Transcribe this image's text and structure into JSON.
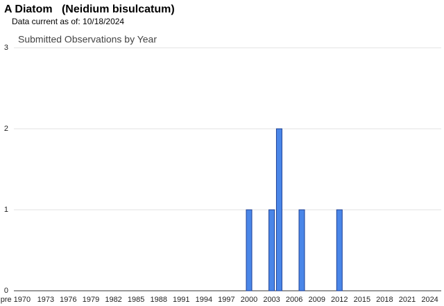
{
  "header": {
    "title": "A Diatom   (Neidium bisulcatum)",
    "subtitle": "Data current as of: 10/18/2024"
  },
  "chart_data": {
    "type": "bar",
    "title": "Submitted Observations by Year",
    "categories": [
      "pre 1970",
      null,
      null,
      null,
      "1973",
      null,
      null,
      "1976",
      null,
      null,
      "1979",
      null,
      null,
      "1982",
      null,
      null,
      "1985",
      null,
      null,
      "1988",
      null,
      null,
      "1991",
      null,
      null,
      "1994",
      null,
      null,
      "1997",
      null,
      null,
      "2000",
      null,
      null,
      "2003",
      null,
      null,
      "2006",
      null,
      null,
      "2009",
      null,
      null,
      "2012",
      null,
      null,
      "2015",
      null,
      null,
      "2018",
      null,
      null,
      "2021",
      null,
      null,
      "2024"
    ],
    "values": [
      0,
      0,
      0,
      0,
      0,
      0,
      0,
      0,
      0,
      0,
      0,
      0,
      0,
      0,
      0,
      0,
      0,
      0,
      0,
      0,
      0,
      0,
      0,
      0,
      0,
      0,
      0,
      0,
      0,
      0,
      0,
      1,
      0,
      0,
      1,
      2,
      0,
      0,
      1,
      0,
      0,
      0,
      0,
      1,
      0,
      0,
      0,
      0,
      0,
      0,
      0,
      0,
      0,
      0,
      0,
      0
    ],
    "color": "#4a86e8",
    "ylim": [
      0,
      3
    ],
    "yticks": [
      0,
      1,
      2,
      3
    ],
    "grid": true
  }
}
